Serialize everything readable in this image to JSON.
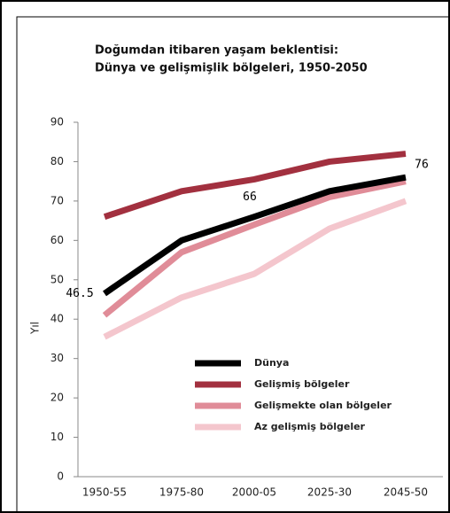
{
  "chart_data": {
    "type": "line",
    "title": "Doğumdan itibaren yaşam beklentisi:",
    "subtitle": "Dünya ve gelişmişlik bölgeleri, 1950-2050",
    "y_label": "Yıl",
    "categories": [
      "1950-55",
      "1975-80",
      "2000-05",
      "2025-30",
      "2045-50"
    ],
    "series": [
      {
        "name": "Dünya",
        "color": "#000000",
        "values": [
          46.5,
          60,
          66,
          72.5,
          76
        ]
      },
      {
        "name": "Gelişmiş bölgeler",
        "color": "#a2303f",
        "values": [
          66,
          72.5,
          75.5,
          80,
          82
        ]
      },
      {
        "name": "Gelişmekte olan bölgeler",
        "color": "#e08c98",
        "values": [
          41,
          57,
          64,
          71,
          75
        ]
      },
      {
        "name": "Az gelişmiş bölgeler",
        "color": "#f4c6cd",
        "values": [
          35.5,
          45.5,
          51.5,
          63,
          70
        ]
      }
    ],
    "ylim": [
      0,
      90
    ],
    "yticks": [
      0,
      10,
      20,
      30,
      40,
      50,
      60,
      70,
      80,
      90
    ]
  }
}
